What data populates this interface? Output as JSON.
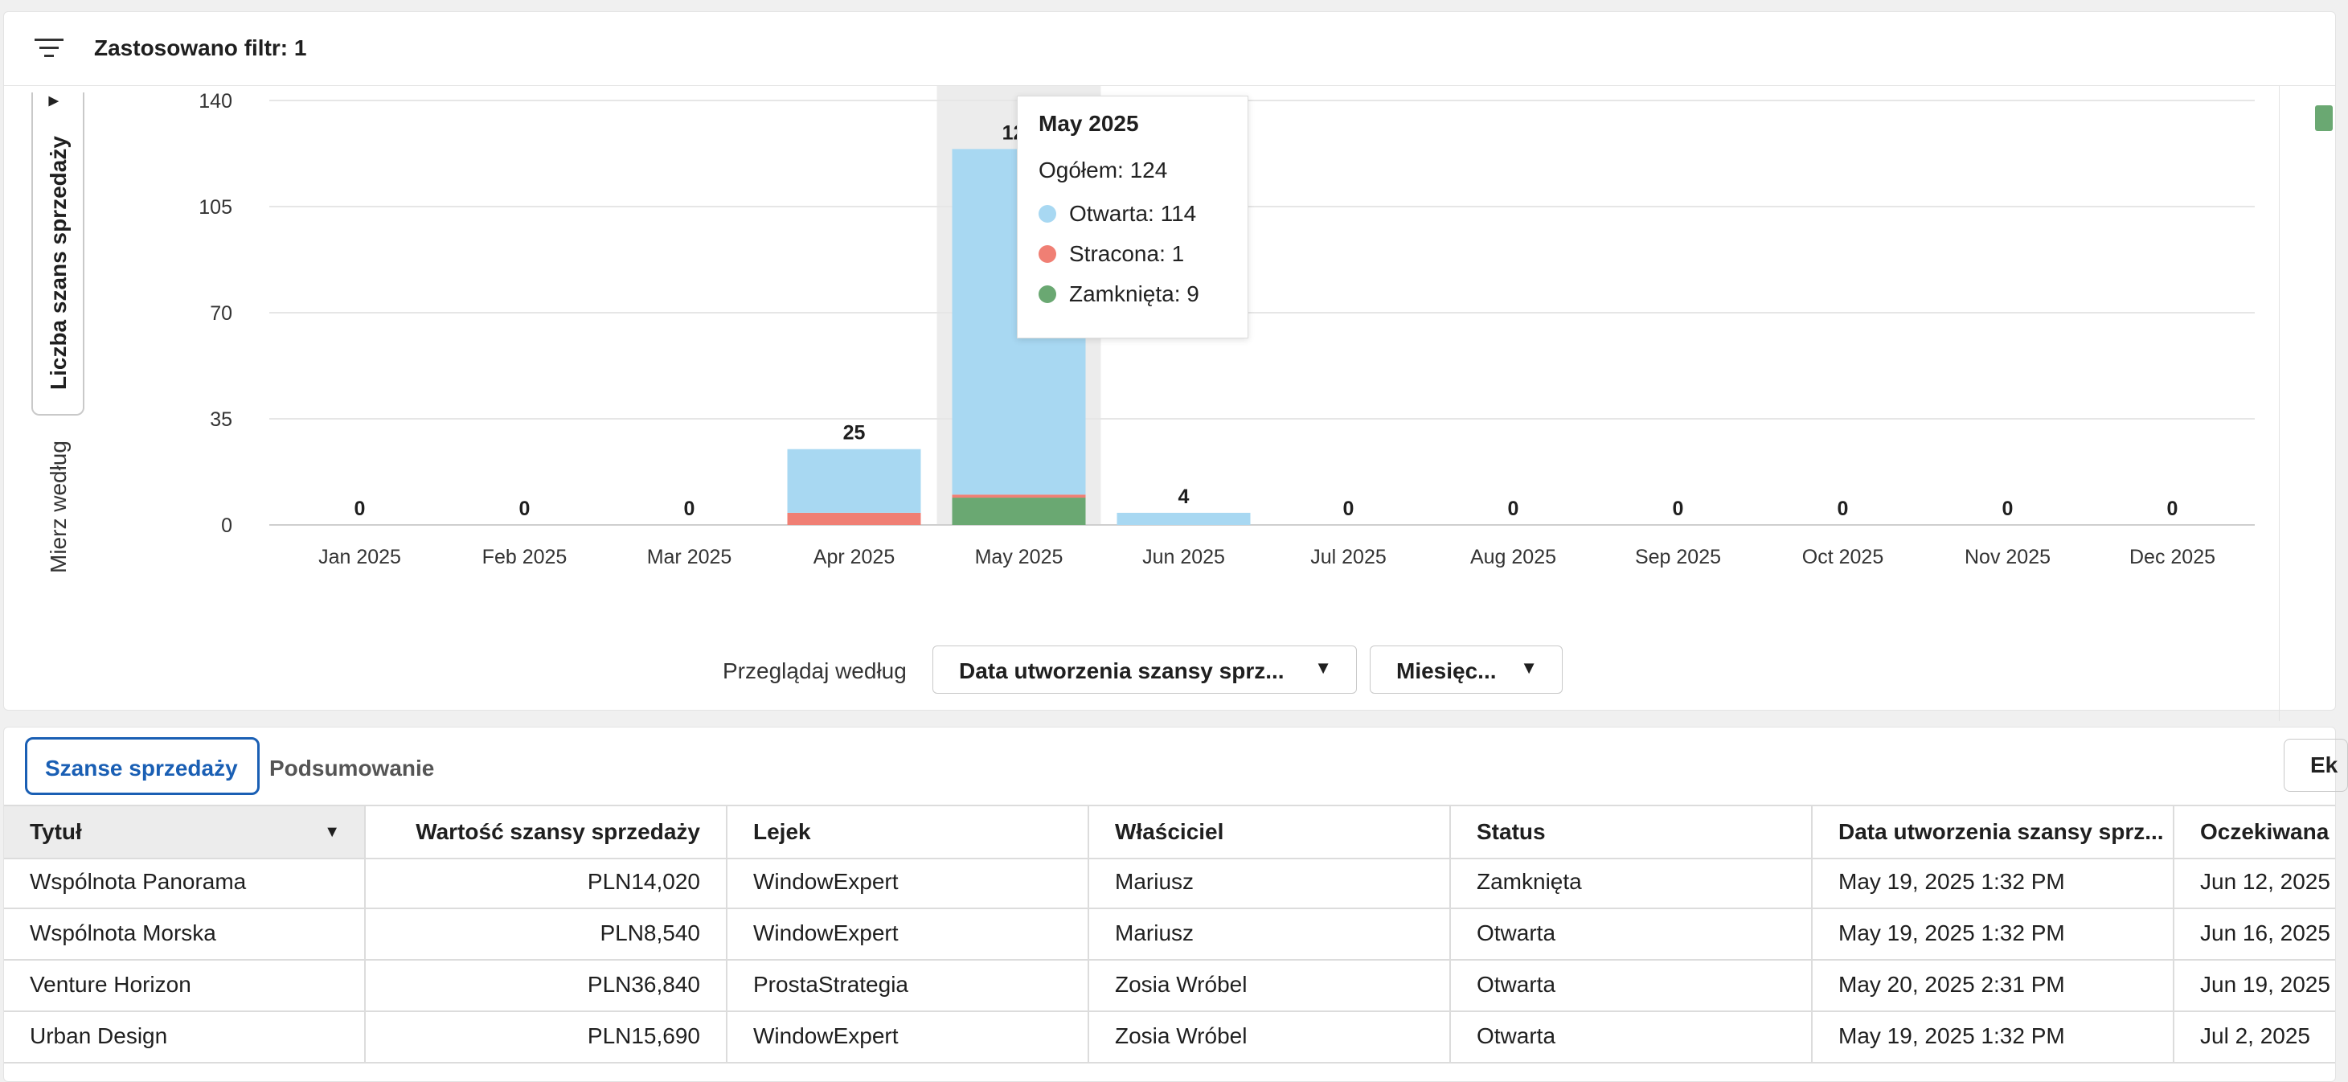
{
  "filter_bar": {
    "label": "Zastosowano filtr: 1"
  },
  "measure": {
    "label": "Mierz według",
    "selected": "Liczba szans sprzedaży"
  },
  "browse": {
    "label": "Przeglądaj według",
    "field": "Data utworzenia szansy sprz...",
    "period": "Miesięc..."
  },
  "colors": {
    "open": "#a8d8f2",
    "lost": "#f07f74",
    "closed": "#6aa872",
    "accent": "#1a5fb4"
  },
  "chart_data": {
    "type": "bar",
    "stacked": true,
    "categories": [
      "Jan 2025",
      "Feb 2025",
      "Mar 2025",
      "Apr 2025",
      "May 2025",
      "Jun 2025",
      "Jul 2025",
      "Aug 2025",
      "Sep 2025",
      "Oct 2025",
      "Nov 2025",
      "Dec 2025"
    ],
    "series": [
      {
        "name": "Zamknięta",
        "color": "#6aa872",
        "values": [
          0,
          0,
          0,
          0,
          9,
          0,
          0,
          0,
          0,
          0,
          0,
          0
        ]
      },
      {
        "name": "Stracona",
        "color": "#f07f74",
        "values": [
          0,
          0,
          0,
          4,
          1,
          0,
          0,
          0,
          0,
          0,
          0,
          0
        ]
      },
      {
        "name": "Otwarta",
        "color": "#a8d8f2",
        "values": [
          0,
          0,
          0,
          21,
          114,
          4,
          0,
          0,
          0,
          0,
          0,
          0
        ]
      }
    ],
    "totals": [
      "0",
      "0",
      "0",
      "25",
      "124",
      "4",
      "0",
      "0",
      "0",
      "0",
      "0",
      "0"
    ],
    "yticks": [
      "0",
      "35",
      "70",
      "105",
      "140"
    ],
    "ylim": [
      0,
      140
    ],
    "highlighted_category": "May 2025",
    "grid": true
  },
  "tooltip": {
    "title": "May 2025",
    "total": "Ogółem: 124",
    "items": [
      {
        "label": "Otwarta: 114",
        "color": "#a8d8f2"
      },
      {
        "label": "Stracona: 1",
        "color": "#f07f74"
      },
      {
        "label": "Zamknięta: 9",
        "color": "#6aa872"
      }
    ]
  },
  "tabs": [
    {
      "label": "Szanse sprzedaży"
    },
    {
      "label": "Podsumowanie"
    }
  ],
  "export_label": "Ek",
  "table": {
    "headers": [
      "Tytuł",
      "Wartość szansy sprzedaży",
      "Lejek",
      "Właściciel",
      "Status",
      "Data utworzenia szansy sprz...",
      "Oczekiwana"
    ],
    "rows": [
      [
        "Wspólnota Panorama",
        "PLN14,020",
        "WindowExpert",
        "Mariusz",
        "Zamknięta",
        "May 19, 2025 1:32 PM",
        "Jun 12, 2025"
      ],
      [
        "Wspólnota Morska",
        "PLN8,540",
        "WindowExpert",
        "Mariusz",
        "Otwarta",
        "May 19, 2025 1:32 PM",
        "Jun 16, 2025"
      ],
      [
        "Venture Horizon",
        "PLN36,840",
        "ProstaStrategia",
        "Zosia Wróbel",
        "Otwarta",
        "May 20, 2025 2:31 PM",
        "Jun 19, 2025"
      ],
      [
        "Urban Design",
        "PLN15,690",
        "WindowExpert",
        "Zosia Wróbel",
        "Otwarta",
        "May 19, 2025 1:32 PM",
        "Jul 2, 2025"
      ]
    ]
  }
}
